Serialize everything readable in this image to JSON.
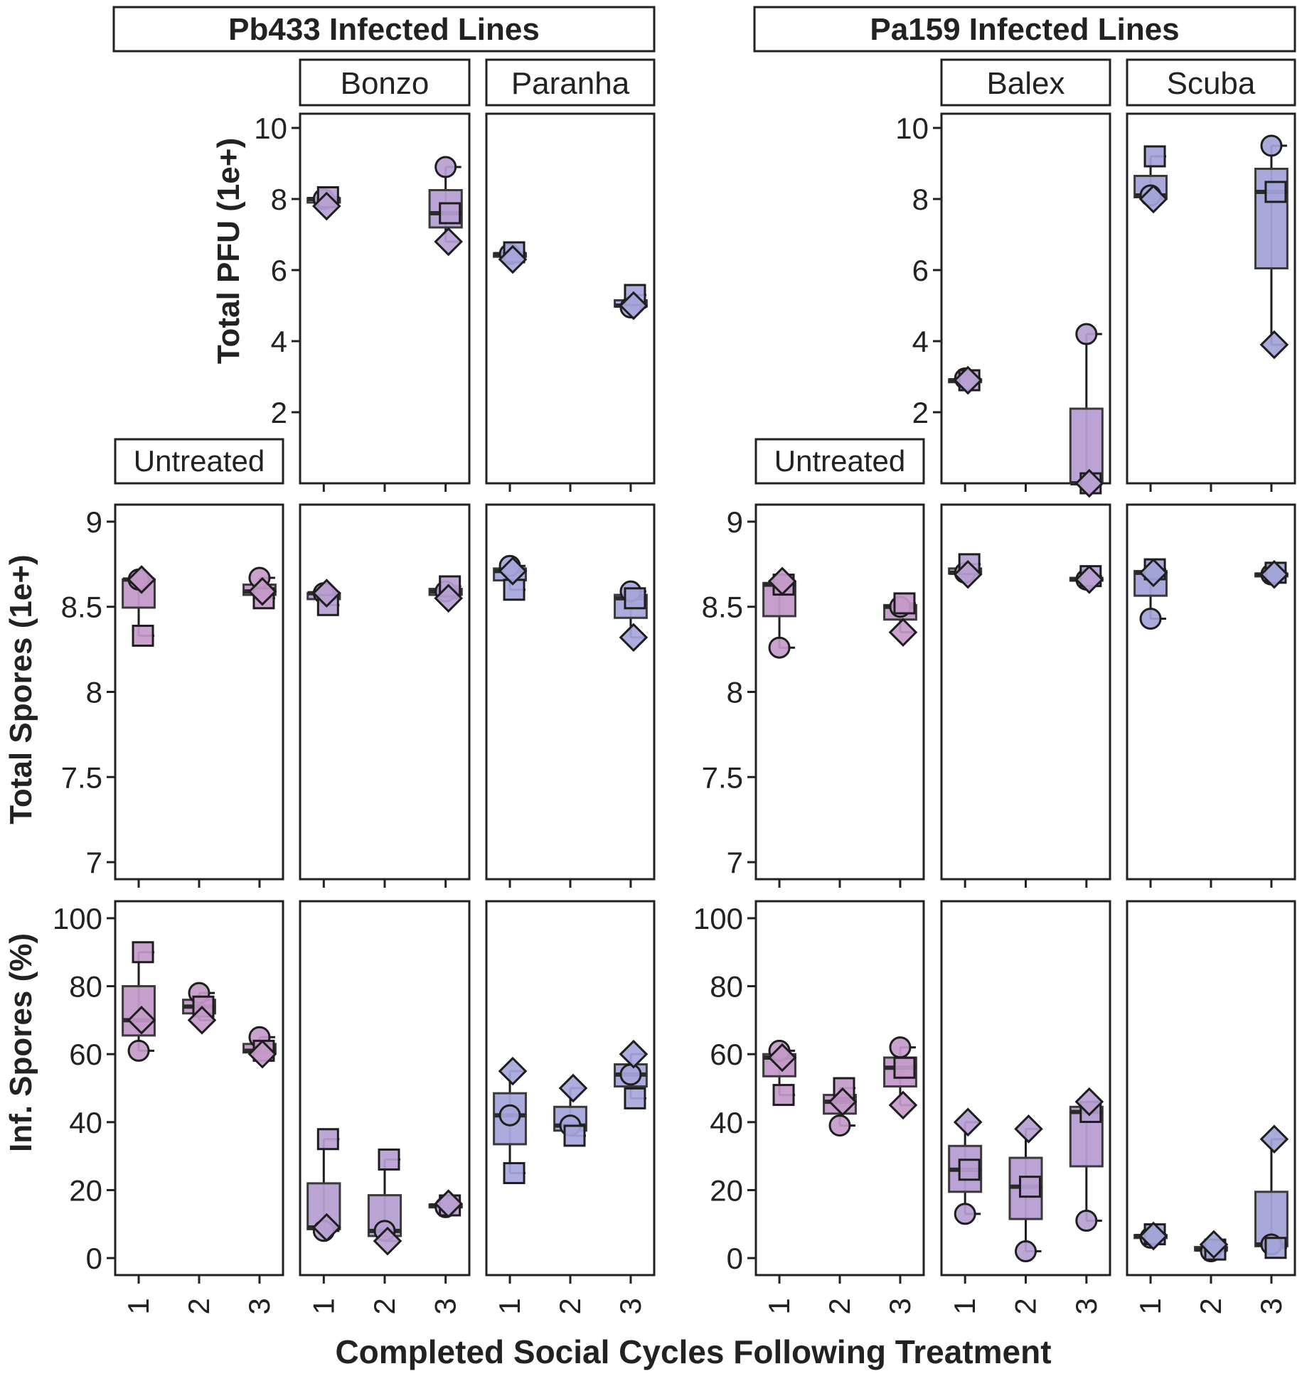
{
  "figure": {
    "x_axis_label": "Completed Social Cycles Following Treatment",
    "group_titles": [
      "Pb433 Infected Lines",
      "Pa159 Infected Lines"
    ],
    "untreated_label": "Untreated",
    "row_labels": [
      "Total PFU (1e+)",
      "Total Spores (1e+)",
      "Inf. Spores (%)"
    ]
  },
  "chart_data": {
    "type": "box",
    "markers": [
      "circle",
      "square",
      "diamond"
    ],
    "x": [
      "1",
      "2",
      "3"
    ],
    "colors": {
      "untreated": "#c49ac9",
      "bonzo": "#b7a0d2",
      "paranha": "#a6a6dc",
      "balex": "#b79fd3",
      "scuba": "#a3a4d8",
      "overlap": "#7e5a9a"
    },
    "rows": [
      {
        "key": "pfu",
        "ylabel": "Total PFU (1e+)",
        "ylim": [
          0,
          10.4
        ],
        "ticks": [
          2,
          4,
          6,
          8,
          10
        ],
        "tick_labels": [
          "2",
          "4",
          "6",
          "8",
          "10"
        ]
      },
      {
        "key": "spores",
        "ylabel": "Total Spores (1e+)",
        "ylim": [
          6.9,
          9.1
        ],
        "ticks": [
          7,
          7.5,
          8,
          8.5,
          9
        ],
        "tick_labels": [
          "7",
          "7.5",
          "8",
          "8.5",
          "9"
        ]
      },
      {
        "key": "inf",
        "ylabel": "Inf. Spores (%)",
        "ylim": [
          -5,
          105
        ],
        "ticks": [
          0,
          20,
          40,
          60,
          80,
          100
        ],
        "tick_labels": [
          "0",
          "20",
          "40",
          "60",
          "80",
          "100"
        ]
      }
    ],
    "panels": [
      {
        "group": "Pb433 Infected Lines",
        "name": "Untreated",
        "color_key": "untreated",
        "spores": [
          {
            "x": "1",
            "circle": 8.66,
            "square": 8.33,
            "diamond": 8.66
          },
          {
            "x": "3",
            "circle": 8.67,
            "square": 8.55,
            "diamond": 8.59
          }
        ],
        "inf": [
          {
            "x": "1",
            "circle": 61,
            "square": 90,
            "diamond": 70
          },
          {
            "x": "2",
            "circle": 78,
            "square": 74,
            "diamond": 70
          },
          {
            "x": "3",
            "circle": 65,
            "square": 61,
            "diamond": 60
          }
        ]
      },
      {
        "group": "Pb433 Infected Lines",
        "name": "Bonzo",
        "color_key": "bonzo",
        "pfu": [
          {
            "x": "1",
            "circle": 8.0,
            "square": 8.05,
            "diamond": 7.8
          },
          {
            "x": "3",
            "circle": 8.9,
            "square": 7.6,
            "diamond": 6.8
          }
        ],
        "spores": [
          {
            "x": "1",
            "circle": 8.58,
            "square": 8.51,
            "diamond": 8.58
          },
          {
            "x": "3",
            "circle": 8.59,
            "square": 8.62,
            "diamond": 8.55
          }
        ],
        "inf": [
          {
            "x": "1",
            "circle": 8,
            "square": 35,
            "diamond": 9
          },
          {
            "x": "2",
            "circle": 8,
            "square": 29,
            "diamond": 5
          },
          {
            "x": "3",
            "circle": 15,
            "square": 15.5,
            "diamond": 16
          }
        ]
      },
      {
        "group": "Pb433 Infected Lines",
        "name": "Paranha",
        "color_key": "paranha",
        "pfu": [
          {
            "x": "1",
            "circle": 6.45,
            "square": 6.5,
            "diamond": 6.3
          },
          {
            "x": "3",
            "circle": 4.95,
            "square": 5.3,
            "diamond": 5.0
          }
        ],
        "spores": [
          {
            "x": "1",
            "circle": 8.74,
            "square": 8.6,
            "diamond": 8.71
          },
          {
            "x": "3",
            "circle": 8.59,
            "square": 8.55,
            "diamond": 8.32
          }
        ],
        "inf": [
          {
            "x": "1",
            "circle": 42,
            "square": 25,
            "diamond": 55
          },
          {
            "x": "2",
            "circle": 39,
            "square": 36,
            "diamond": 50
          },
          {
            "x": "3",
            "circle": 54,
            "square": 47,
            "diamond": 60
          }
        ]
      },
      {
        "group": "Pa159 Infected Lines",
        "name": "Untreated",
        "color_key": "untreated",
        "spores": [
          {
            "x": "1",
            "circle": 8.26,
            "square": 8.63,
            "diamond": 8.65
          },
          {
            "x": "3",
            "circle": 8.5,
            "square": 8.52,
            "diamond": 8.35
          }
        ],
        "inf": [
          {
            "x": "1",
            "circle": 61,
            "square": 48,
            "diamond": 59
          },
          {
            "x": "2",
            "circle": 39,
            "square": 50,
            "diamond": 46
          },
          {
            "x": "3",
            "circle": 62,
            "square": 56,
            "diamond": 45
          }
        ]
      },
      {
        "group": "Pa159 Infected Lines",
        "name": "Balex",
        "color_key": "balex",
        "pfu": [
          {
            "x": "1",
            "circle": 2.95,
            "square": 2.9,
            "diamond": 2.9
          },
          {
            "x": "3",
            "circle": 4.2,
            "square": 0.0,
            "diamond": 0.0
          }
        ],
        "spores": [
          {
            "x": "1",
            "circle": 8.7,
            "square": 8.75,
            "diamond": 8.69
          },
          {
            "x": "3",
            "circle": 8.66,
            "square": 8.68,
            "diamond": 8.66
          }
        ],
        "inf": [
          {
            "x": "1",
            "circle": 13,
            "square": 26,
            "diamond": 40
          },
          {
            "x": "2",
            "circle": 2,
            "square": 21,
            "diamond": 38
          },
          {
            "x": "3",
            "circle": 11,
            "square": 43,
            "diamond": 46
          }
        ]
      },
      {
        "group": "Pa159 Infected Lines",
        "name": "Scuba",
        "color_key": "scuba",
        "pfu": [
          {
            "x": "1",
            "circle": 8.1,
            "square": 9.2,
            "diamond": 8.0
          },
          {
            "x": "3",
            "circle": 9.5,
            "square": 8.2,
            "diamond": 3.9
          }
        ],
        "spores": [
          {
            "x": "1",
            "circle": 8.43,
            "square": 8.72,
            "diamond": 8.7
          },
          {
            "x": "3",
            "circle": 8.69,
            "square": 8.7,
            "diamond": 8.69
          }
        ],
        "inf": [
          {
            "x": "1",
            "circle": 6,
            "square": 7,
            "diamond": 6.5
          },
          {
            "x": "2",
            "circle": 2,
            "square": 2.5,
            "diamond": 4
          },
          {
            "x": "3",
            "circle": 4,
            "square": 3,
            "diamond": 35
          }
        ]
      }
    ]
  }
}
